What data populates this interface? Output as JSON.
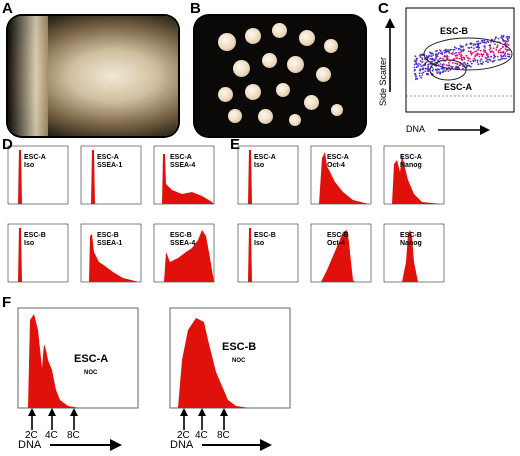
{
  "panels": {
    "A": "A",
    "B": "B",
    "C": "C",
    "D": "D",
    "E": "E",
    "F": "F"
  },
  "flow": {
    "y_label": "Side Scatter",
    "x_label": "DNA",
    "gate_b": "ESC-B",
    "gate_a": "ESC-A"
  },
  "panel_d": [
    {
      "line1": "ESC-A",
      "line2": "Iso"
    },
    {
      "line1": "ESC-A",
      "line2": "SSEA-1"
    },
    {
      "line1": "ESC-A",
      "line2": "SSEA-4"
    },
    {
      "line1": "ESC-B",
      "line2": "Iso"
    },
    {
      "line1": "ESC-B",
      "line2": "SSEA-1"
    },
    {
      "line1": "ESC-B",
      "line2": "SSEA-4"
    }
  ],
  "panel_e": [
    {
      "line1": "ESC-A",
      "line2": "Iso"
    },
    {
      "line1": "ESC-A",
      "line2": "Oct-4"
    },
    {
      "line1": "ESC-A",
      "line2": "Nanog"
    },
    {
      "line1": "ESC-B",
      "line2": "Iso"
    },
    {
      "line1": "ESC-B",
      "line2": "Oct-4"
    },
    {
      "line1": "ESC-B",
      "line2": "Nanog"
    }
  ],
  "panel_f": {
    "left": {
      "title": "ESC-A",
      "sub": "NOC"
    },
    "right": {
      "title": "ESC-B",
      "sub": "NOC"
    },
    "markers": [
      "2C",
      "4C",
      "8C"
    ],
    "x_label": "DNA"
  },
  "colors": {
    "fill": "#e0100a",
    "arrow": "#000000"
  }
}
